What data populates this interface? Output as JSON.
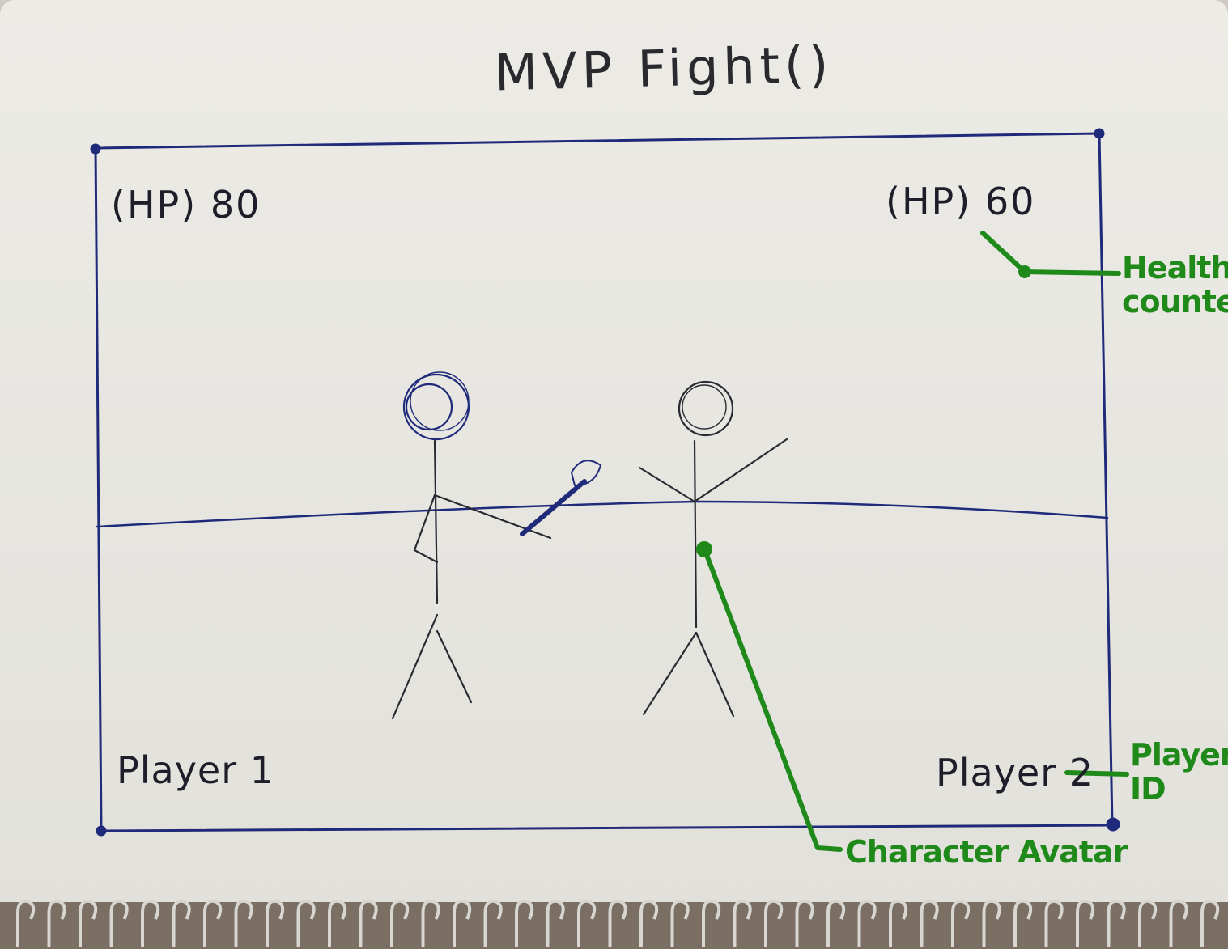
{
  "title": "MVP Fight()",
  "hud": {
    "player1_hp": "(HP) 80",
    "player2_hp": "(HP) 60",
    "player1_label": "Player 1",
    "player2_label": "Player 2"
  },
  "annotations": {
    "health_counter": "Health counter",
    "player_id": "Player ID",
    "character_avatar": "Character Avatar"
  },
  "colors": {
    "ink": "#1f2a7a",
    "pencil": "#2a2a33",
    "annotation": "#1f8a1a"
  }
}
